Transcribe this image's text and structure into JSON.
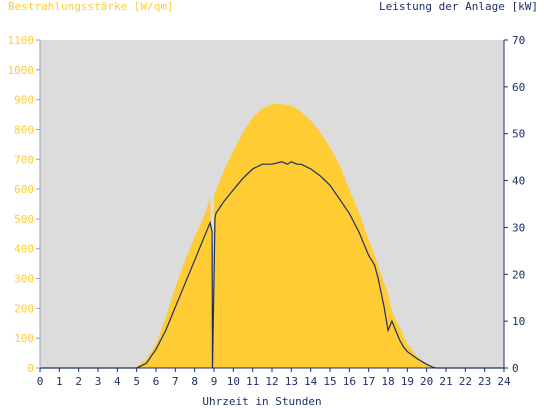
{
  "chart_data": {
    "type": "area",
    "left_title": "Bestrahlungsstärke [W/qm]",
    "right_title": "Leistung der Anlage [kW]",
    "xlabel": "Uhrzeit in Stunden",
    "x_ticks": [
      "0",
      "1",
      "2",
      "3",
      "4",
      "5",
      "6",
      "7",
      "8",
      "9",
      "10",
      "11",
      "12",
      "13",
      "14",
      "15",
      "16",
      "17",
      "18",
      "19",
      "20",
      "21",
      "22",
      "23",
      "24"
    ],
    "y_left_ticks": [
      "0",
      "100",
      "200",
      "300",
      "400",
      "500",
      "600",
      "700",
      "800",
      "900",
      "1000",
      "1100"
    ],
    "y_right_ticks": [
      "0",
      "10",
      "20",
      "30",
      "40",
      "50",
      "60",
      "70"
    ],
    "x_range": [
      0,
      24
    ],
    "y_left_range": [
      0,
      1100
    ],
    "y_right_range": [
      0,
      70
    ],
    "grid": false,
    "colors": {
      "plot_background": "#dcdcdc",
      "irradiance_fill": "#ffcc33",
      "power_line": "#1c2e66",
      "left_axis_text": "#ffcc33",
      "right_axis_text": "#1c2e66",
      "axis_line": "#1c2e66"
    },
    "series": [
      {
        "axis": "left",
        "style": "area",
        "x": [
          0,
          4.9,
          5.0,
          5.5,
          6.0,
          6.5,
          7.0,
          7.5,
          8.0,
          8.5,
          8.8,
          8.9,
          8.95,
          9.0,
          9.5,
          10.0,
          10.5,
          11.0,
          11.5,
          12.0,
          12.5,
          13.0,
          13.5,
          14.0,
          14.5,
          15.0,
          15.5,
          16.0,
          16.5,
          17.0,
          17.3,
          17.5,
          18.0,
          18.2,
          18.5,
          18.8,
          19.0,
          19.5,
          20.0,
          20.3,
          20.5,
          24
        ],
        "y": [
          0,
          0,
          5,
          30,
          80,
          170,
          270,
          360,
          440,
          510,
          570,
          350,
          10,
          580,
          660,
          730,
          790,
          840,
          870,
          885,
          885,
          880,
          860,
          830,
          790,
          740,
          680,
          600,
          520,
          430,
          380,
          340,
          250,
          190,
          150,
          110,
          80,
          40,
          10,
          5,
          0,
          0
        ]
      },
      {
        "axis": "right",
        "style": "line",
        "x": [
          0,
          5.0,
          5.5,
          6.0,
          6.5,
          7.0,
          7.5,
          8.0,
          8.5,
          8.8,
          8.9,
          8.92,
          9.05,
          9.1,
          9.5,
          10.0,
          10.5,
          11.0,
          11.5,
          12.0,
          12.5,
          12.8,
          13.0,
          13.3,
          13.5,
          14.0,
          14.5,
          15.0,
          15.5,
          16.0,
          16.5,
          17.0,
          17.3,
          17.5,
          17.8,
          18.0,
          18.2,
          18.4,
          18.6,
          18.8,
          19.0,
          19.5,
          20.0,
          20.3,
          20.5,
          24
        ],
        "y": [
          0,
          0,
          1,
          4,
          8,
          13,
          18,
          23,
          28,
          31,
          29,
          0,
          32,
          33,
          35.5,
          38,
          40.5,
          42.5,
          43.5,
          43.5,
          44,
          43.5,
          44,
          43.5,
          43.5,
          42.5,
          41,
          39,
          36,
          33,
          29,
          24,
          22,
          19,
          13,
          8,
          10,
          8,
          6,
          4.5,
          3.5,
          2,
          0.8,
          0.2,
          0,
          0
        ]
      }
    ]
  }
}
